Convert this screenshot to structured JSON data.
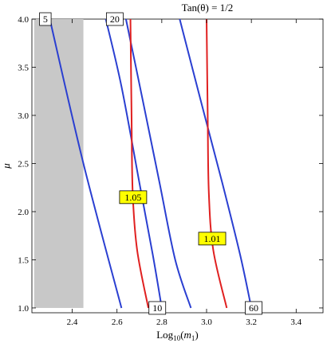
{
  "chart_data": {
    "type": "contour",
    "title": "Tan(θ) = 1/2",
    "xlabel_base": "Log",
    "xlabel_sub": "10",
    "xlabel_var": "m",
    "xlabel_var_sub": "1",
    "ylabel": "μ",
    "xlim": [
      2.22,
      3.52
    ],
    "ylim": [
      0.95,
      4.0
    ],
    "x_ticks": [
      2.4,
      2.6,
      2.8,
      3.0,
      3.2,
      3.4
    ],
    "x_tick_labels": [
      "2.4",
      "2.6",
      "2.8",
      "3.0",
      "3.2",
      "3.4"
    ],
    "y_ticks": [
      1.0,
      1.5,
      2.0,
      2.5,
      3.0,
      3.5,
      4.0
    ],
    "y_tick_labels": [
      "1.0",
      "1.5",
      "2.0",
      "2.5",
      "3.0",
      "3.5",
      "4.0"
    ],
    "shaded_region": {
      "x": [
        2.23,
        2.45
      ],
      "y": [
        1.0,
        4.0
      ],
      "color": "#c8c8c8"
    },
    "blue_contours": [
      {
        "label": "5",
        "points": [
          [
            2.3,
            4.0
          ],
          [
            2.45,
            2.5
          ],
          [
            2.62,
            1.0
          ]
        ]
      },
      {
        "label": "10",
        "points": [
          [
            2.55,
            4.0
          ],
          [
            2.62,
            3.3
          ],
          [
            2.7,
            2.3
          ],
          [
            2.76,
            1.55
          ],
          [
            2.8,
            1.0
          ]
        ]
      },
      {
        "label": "20",
        "points": [
          [
            2.64,
            4.0
          ],
          [
            2.72,
            3.1
          ],
          [
            2.79,
            2.3
          ],
          [
            2.86,
            1.5
          ],
          [
            2.93,
            1.0
          ]
        ]
      },
      {
        "label": "60",
        "points": [
          [
            2.88,
            4.0
          ],
          [
            2.98,
            3.1
          ],
          [
            3.07,
            2.3
          ],
          [
            3.15,
            1.55
          ],
          [
            3.2,
            1.0
          ]
        ]
      }
    ],
    "red_contours": [
      {
        "label": "1.05",
        "points": [
          [
            2.66,
            4.0
          ],
          [
            2.665,
            3.0
          ],
          [
            2.67,
            2.2
          ],
          [
            2.69,
            1.6
          ],
          [
            2.74,
            1.0
          ]
        ]
      },
      {
        "label": "1.01",
        "points": [
          [
            3.0,
            4.0
          ],
          [
            3.005,
            3.0
          ],
          [
            3.01,
            2.2
          ],
          [
            3.03,
            1.6
          ],
          [
            3.09,
            1.0
          ]
        ]
      }
    ],
    "contour_labels": [
      {
        "text": "5",
        "x": 2.28,
        "y": 4.0,
        "style": "white"
      },
      {
        "text": "20",
        "x": 2.59,
        "y": 4.0,
        "style": "white"
      },
      {
        "text": "10",
        "x": 2.78,
        "y": 1.0,
        "style": "white"
      },
      {
        "text": "60",
        "x": 3.21,
        "y": 1.0,
        "style": "white"
      },
      {
        "text": "1.05",
        "x": 2.672,
        "y": 2.15,
        "style": "yellow"
      },
      {
        "text": "1.01",
        "x": 3.025,
        "y": 1.72,
        "style": "yellow"
      }
    ],
    "grid": false,
    "colors": {
      "blue": "#2a3fd1",
      "red": "#e02020",
      "yellow": "#ffff00",
      "shade": "#c8c8c8"
    }
  }
}
